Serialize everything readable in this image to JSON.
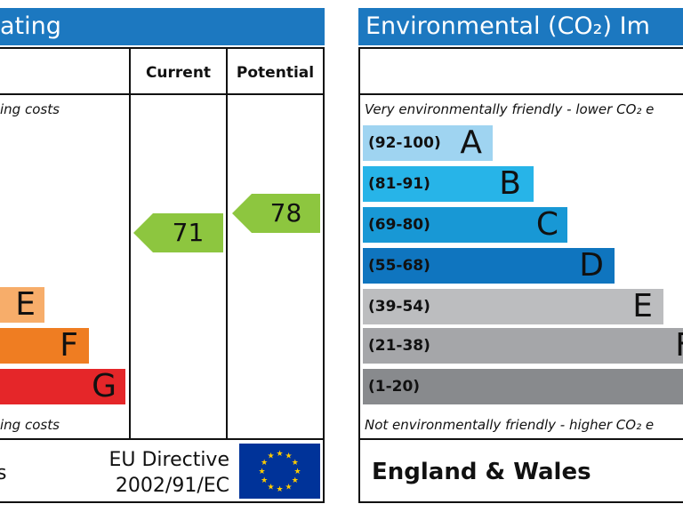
{
  "left_panel": {
    "title": "ating",
    "header": {
      "current": "Current",
      "potential": "Potential"
    },
    "top_note": "ing costs",
    "bottom_note": "ing costs",
    "bands": [
      {
        "letter": "E",
        "color": "#f7ad6a"
      },
      {
        "letter": "F",
        "color": "#ef7d22"
      },
      {
        "letter": "G",
        "color": "#e52629"
      }
    ],
    "current": {
      "value": "71",
      "color": "#8dc63f"
    },
    "potential": {
      "value": "78",
      "color": "#8dc63f"
    },
    "footer": {
      "left_fragment": "s",
      "directive_line1": "EU Directive",
      "directive_line2": "2002/91/EC"
    }
  },
  "right_panel": {
    "title": "Environmental (CO₂) Im",
    "top_note": "Very environmentally friendly - lower CO₂ e",
    "bottom_note": "Not environmentally friendly - higher CO₂ e",
    "bands": [
      {
        "range": "(92-100)",
        "letter": "A",
        "color": "#9fd4f1"
      },
      {
        "range": "(81-91)",
        "letter": "B",
        "color": "#27b4e8"
      },
      {
        "range": "(69-80)",
        "letter": "C",
        "color": "#1898d5"
      },
      {
        "range": "(55-68)",
        "letter": "D",
        "color": "#0f75bf"
      },
      {
        "range": "(39-54)",
        "letter": "E",
        "color": "#bcbdbf"
      },
      {
        "range": "(21-38)",
        "letter": "F",
        "color": "#a5a6a9"
      },
      {
        "range": "(1-20)",
        "letter": "",
        "color": "#888a8d"
      }
    ],
    "footer": {
      "region": "England & Wales"
    }
  }
}
